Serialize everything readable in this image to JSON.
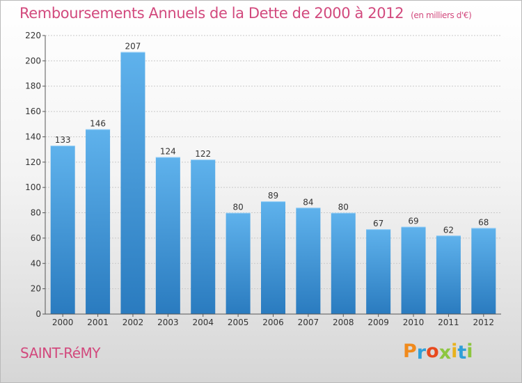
{
  "chart_data": {
    "type": "bar",
    "title": "Remboursements Annuels de la Dette de 2000 à 2012",
    "subtitle": "(en milliers d'€)",
    "categories": [
      "2000",
      "2001",
      "2002",
      "2003",
      "2004",
      "2005",
      "2006",
      "2007",
      "2008",
      "2009",
      "2010",
      "2011",
      "2012"
    ],
    "values": [
      133,
      146,
      207,
      124,
      122,
      80,
      89,
      84,
      80,
      67,
      69,
      62,
      68
    ],
    "xlabel": "",
    "ylabel": "",
    "ylim": [
      0,
      220
    ],
    "yticks": [
      "0",
      "20",
      "40",
      "60",
      "80",
      "100",
      "120",
      "140",
      "160",
      "180",
      "200",
      "220"
    ],
    "grid": "horizontal",
    "legend": "none",
    "bar_color": "#3d94d8"
  },
  "footer": {
    "city": "SAINT-RéMY",
    "brand": "Proxiti",
    "brand_colors": [
      "#f08a1c",
      "#2f9fd8",
      "#e8491d",
      "#8dc63f",
      "#e8b21d",
      "#2f9fd8",
      "#8dc63f"
    ]
  },
  "colors": {
    "title": "#d2497d",
    "axis": "#555555",
    "grid": "#c9c9c9"
  }
}
